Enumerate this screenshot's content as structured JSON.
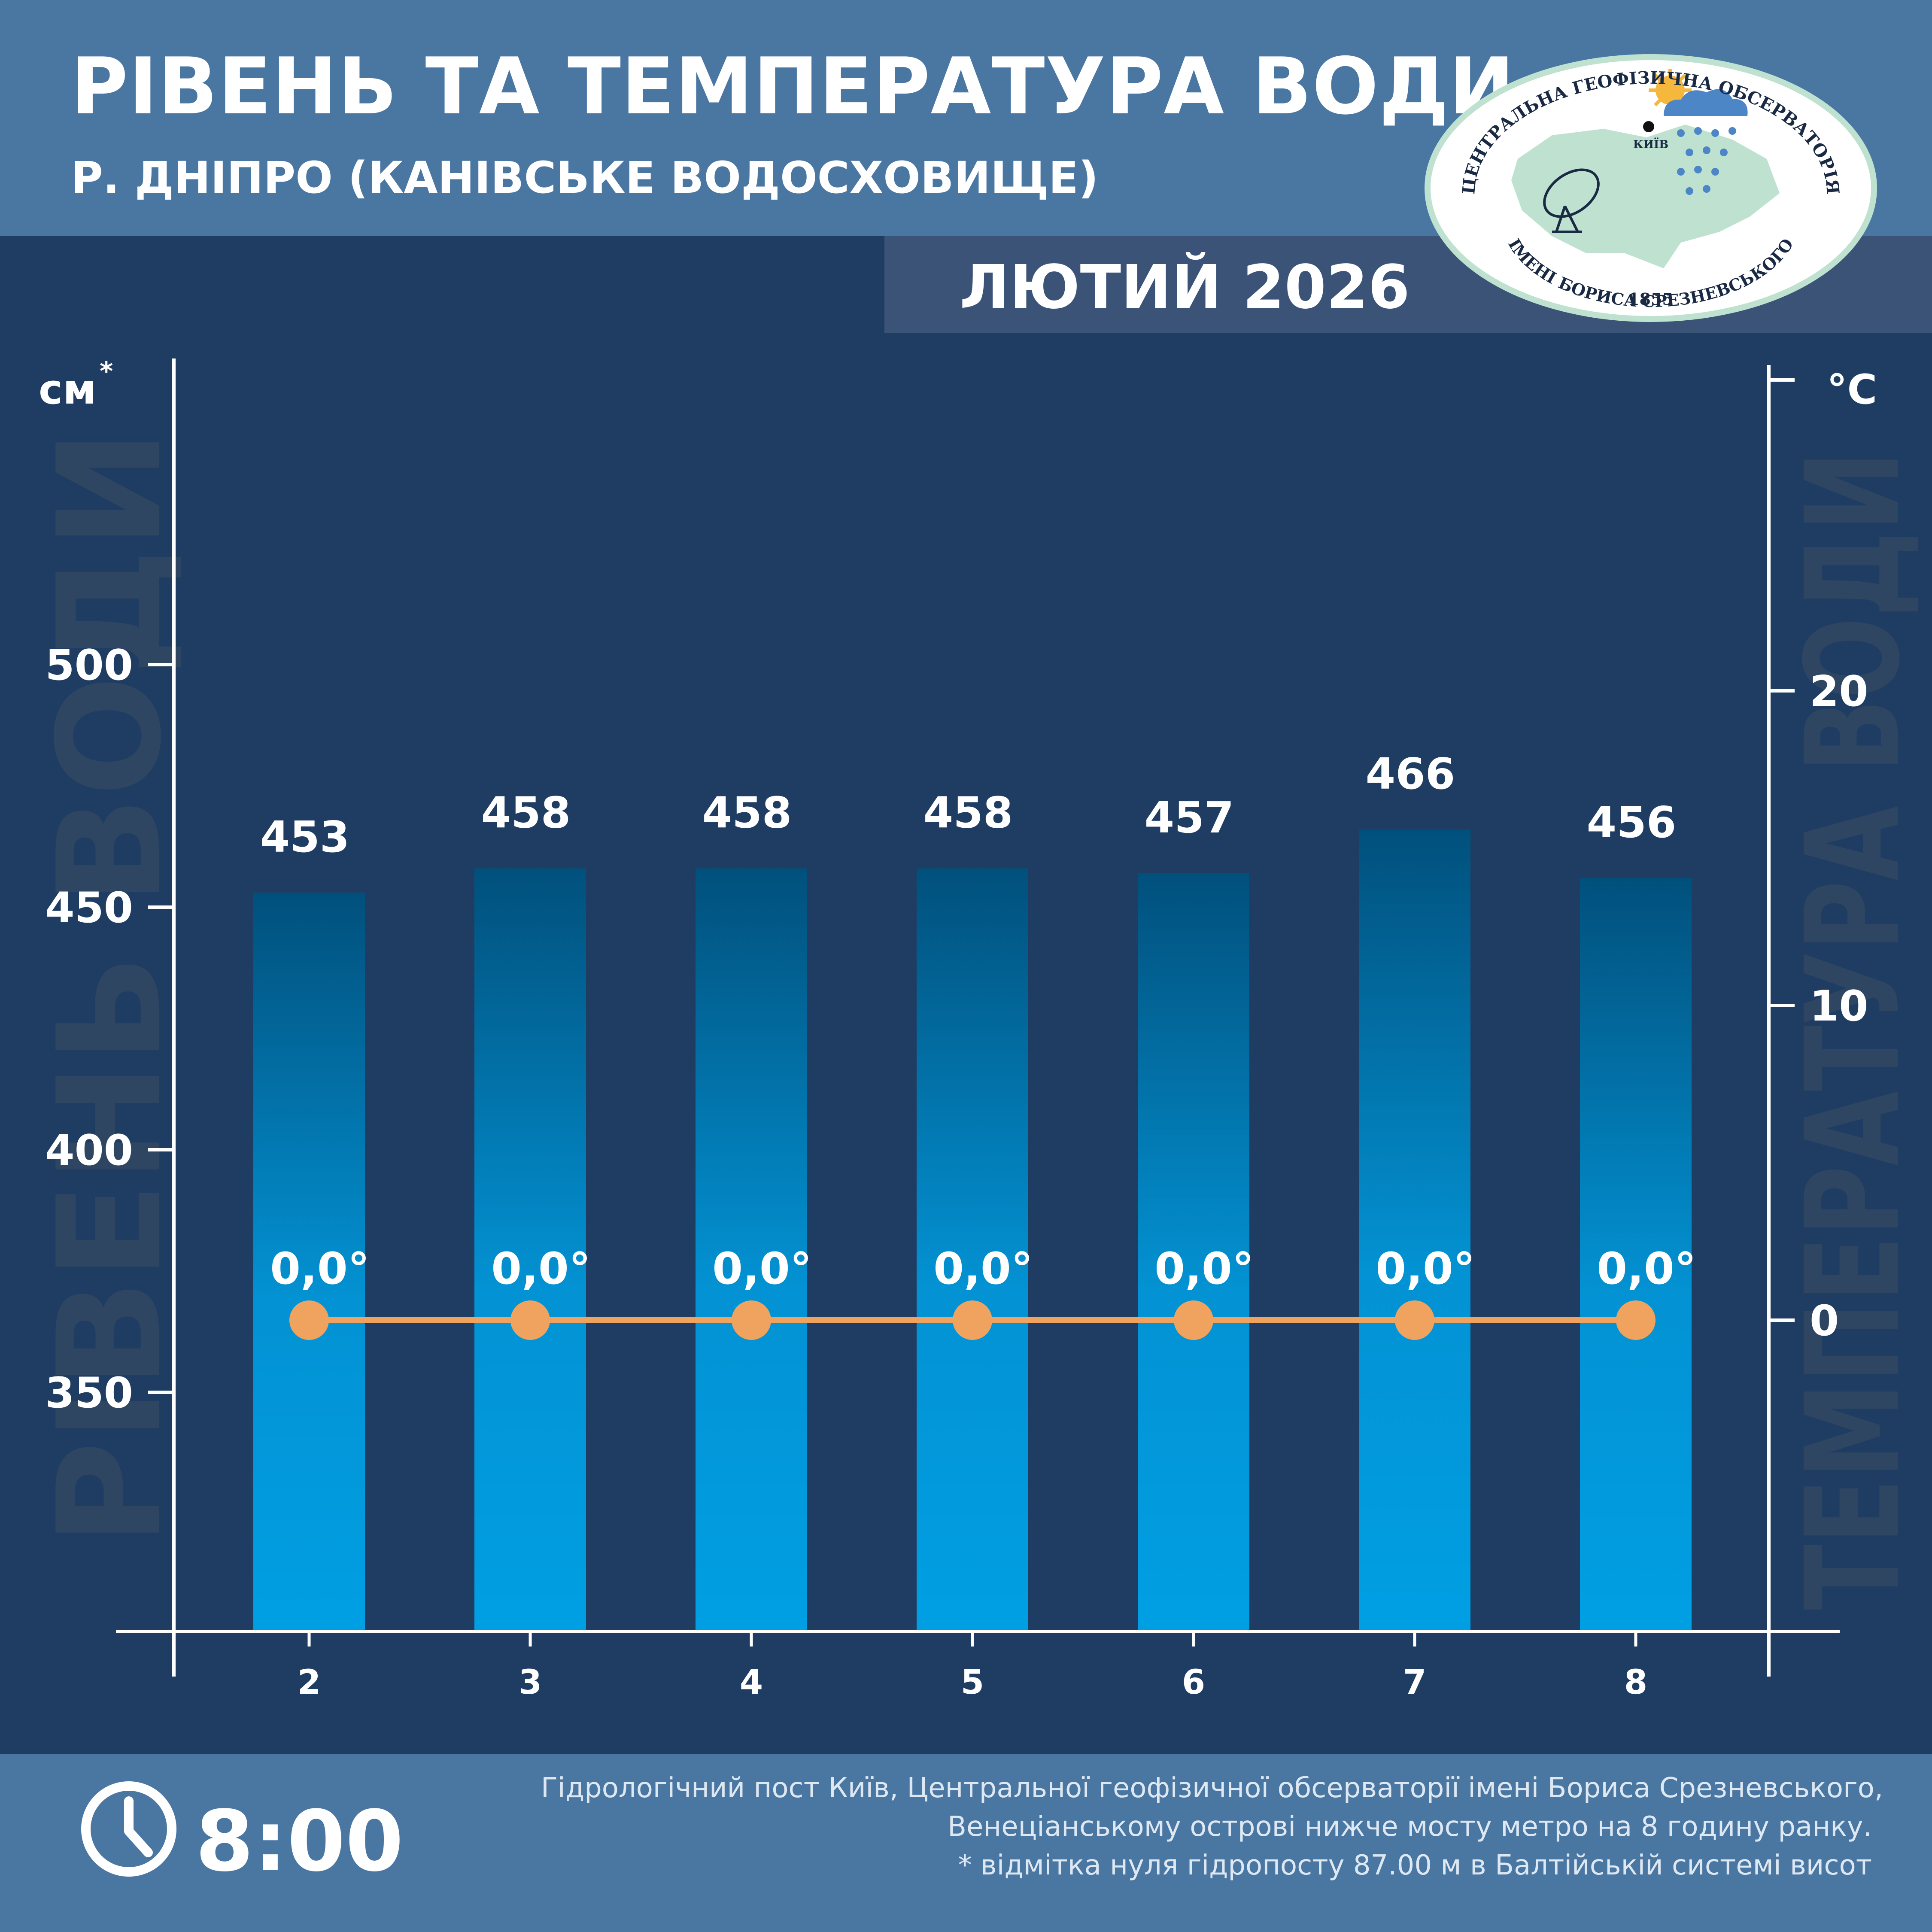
{
  "header": {
    "title": "РІВЕНЬ ТА ТЕМПЕРАТУРА ВОДИ",
    "subtitle": "Р. ДНІПРО (КАНІВСЬКЕ ВОДОСХОВИЩЕ)",
    "month": "ЛЮТИЙ 2026"
  },
  "logo": {
    "top_text": "ЦЕНТРАЛЬНА ГЕОФІЗИЧНА ОБСЕРВАТОРІЯ",
    "bottom_text": "ІМЕНІ БОРИСА СРЕЗНЕВСЬКОГО",
    "year": "1855",
    "city": "КИЇВ"
  },
  "colors": {
    "background": "#1f3d63",
    "header": "#4a76a2",
    "bar_top": "#01507c",
    "bar_bottom": "#009fe3",
    "temperature_line": "#f0a35e",
    "watermark": "#2f4663"
  },
  "chart_data": {
    "type": "bar",
    "categories": [
      "2",
      "3",
      "4",
      "5",
      "6",
      "7",
      "8"
    ],
    "series": [
      {
        "values": [
          453,
          458,
          458,
          458,
          457,
          466,
          456
        ]
      },
      {
        "type": "line",
        "values": [
          0.0,
          0.0,
          0.0,
          0.0,
          0.0,
          0.0,
          0.0
        ],
        "labels": [
          "0,0°",
          "0,0°",
          "0,0°",
          "0,0°",
          "0,0°",
          "0,0°",
          "0,0°"
        ]
      }
    ],
    "ylabel_left": "РІВЕНЬ ВОДИ",
    "ylabel_right": "ТЕМПЕРАТУРА ВОДИ",
    "left_unit": "см",
    "left_unit_mark": "*",
    "right_unit": "°С",
    "left_ticks": [
      "350",
      "400",
      "450",
      "500"
    ],
    "right_ticks": [
      "0",
      "10",
      "20"
    ],
    "ylim_left": [
      300,
      560
    ],
    "ylim_right": [
      -10,
      30
    ],
    "grid": false,
    "legend": "none"
  },
  "footer": {
    "time": "8:00",
    "notes": [
      "Гідрологічний пост Київ, Центральної геофізичної обсерваторії імені Бориса Срезневського,",
      "Венеціанському острові нижче мосту метро  на 8 годину ранку.",
      "* відмітка нуля гідропосту 87.00 м в Балтійській системі висот"
    ]
  }
}
